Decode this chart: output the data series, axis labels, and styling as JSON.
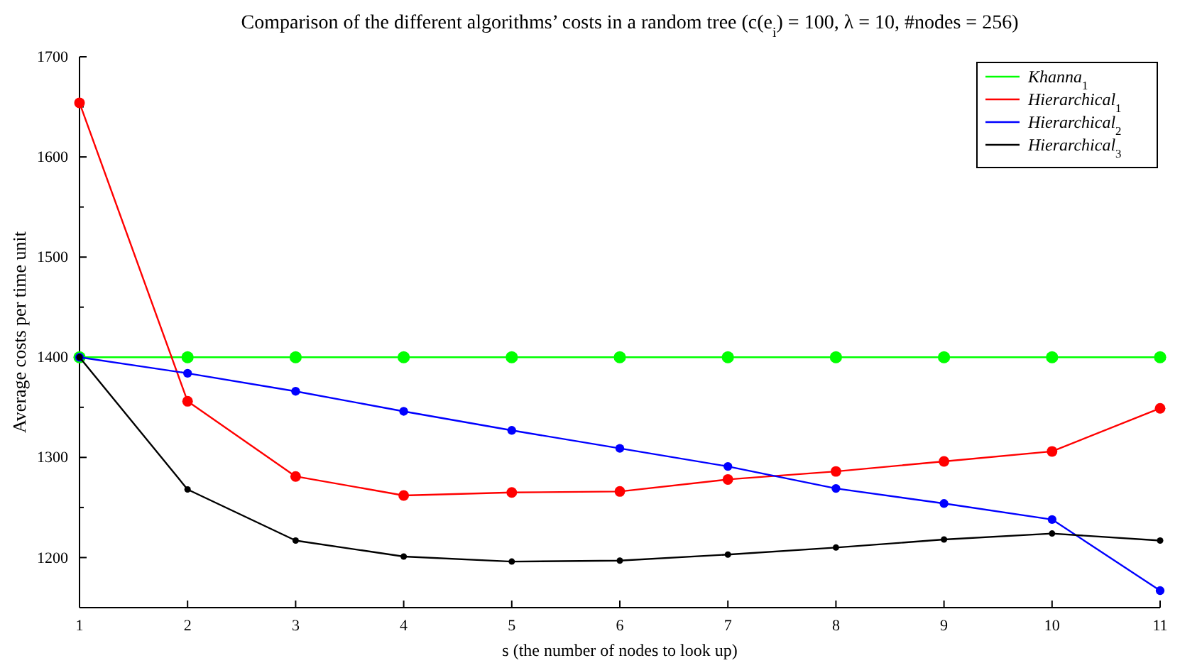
{
  "chart_data": {
    "type": "line",
    "title": "Comparison of the different algorithms’ costs in a random tree (c(e$_{i}$) = 100, λ = 10, #nodes = 256)",
    "xlabel": "s (the number of nodes to look up)",
    "ylabel": "Average costs per time unit",
    "x": [
      1,
      2,
      3,
      4,
      5,
      6,
      7,
      8,
      9,
      10,
      11
    ],
    "series": [
      {
        "name": "Khanna$_{1}$",
        "color": "#00ff00",
        "values": [
          1400,
          1400,
          1400,
          1400,
          1400,
          1400,
          1400,
          1400,
          1400,
          1400,
          1400
        ]
      },
      {
        "name": "Hierarchical$_{1}$",
        "color": "#ff0000",
        "values": [
          1654,
          1356,
          1281,
          1262,
          1265,
          1266,
          1278,
          1286,
          1296,
          1306,
          1349
        ]
      },
      {
        "name": "Hierarchical$_{2}$",
        "color": "#0000ff",
        "values": [
          1400,
          1384,
          1366,
          1346,
          1327,
          1309,
          1291,
          1269,
          1254,
          1238,
          1167
        ]
      },
      {
        "name": "Hierarchical$_{3}$",
        "color": "#000000",
        "values": [
          1400,
          1268,
          1217,
          1201,
          1196,
          1197,
          1203,
          1210,
          1218,
          1224,
          1217
        ]
      }
    ],
    "xlim": [
      1,
      11
    ],
    "xticks": [
      1,
      2,
      3,
      4,
      5,
      6,
      7,
      8,
      9,
      10,
      11
    ],
    "ylim": [
      1150,
      1700
    ],
    "yticks": [
      {
        "value": 1150,
        "label": null
      },
      1200,
      {
        "value": 1250,
        "label": null
      },
      1300,
      {
        "value": 1350,
        "label": null
      },
      1400,
      {
        "value": 1450,
        "label": null
      },
      1500,
      {
        "value": 1550,
        "label": null
      },
      1600,
      {
        "value": 1650,
        "label": null
      },
      1700
    ],
    "marker": "circle",
    "line_style": "solid",
    "grid": false,
    "legend": "top right"
  }
}
